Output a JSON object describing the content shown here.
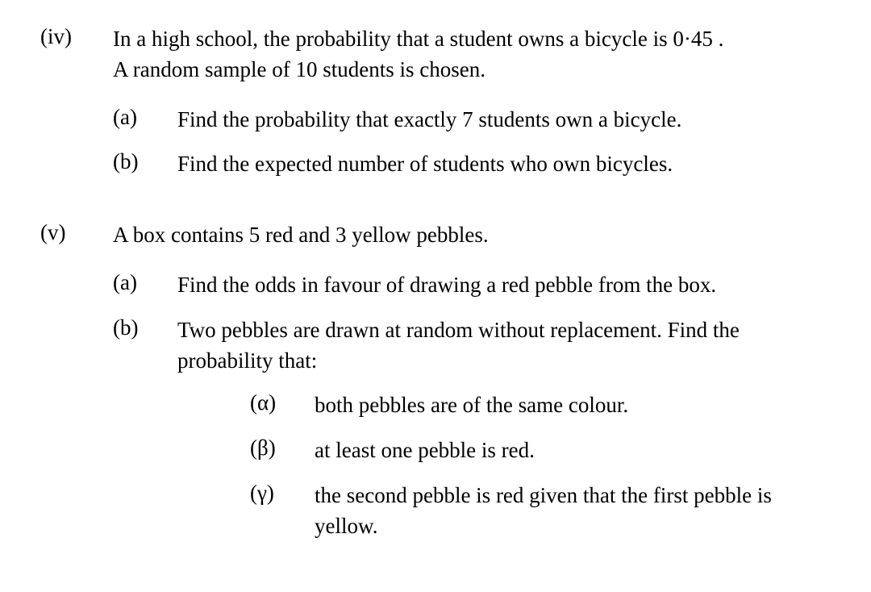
{
  "style": {
    "background_color": "#ffffff",
    "text_color": "#000000",
    "font_family": "Times New Roman, serif",
    "body_fontsize": 27,
    "line_height": 1.4
  },
  "q4": {
    "number": "(iv)",
    "intro_line1": "In a high school, the probability that a student owns a bicycle is  0·45 .",
    "intro_line2": "A random sample of  10  students is chosen.",
    "parts": {
      "a": {
        "marker": "(a)",
        "text": "Find the probability that exactly  7  students own a bicycle."
      },
      "b": {
        "marker": "(b)",
        "text": "Find the expected number of students who own bicycles."
      }
    }
  },
  "q5": {
    "number": "(v)",
    "intro": "A box contains  5  red and  3  yellow pebbles.",
    "parts": {
      "a": {
        "marker": "(a)",
        "text": "Find the odds in favour of drawing a red pebble from the box."
      },
      "b": {
        "marker": "(b)",
        "text": "Two pebbles are drawn at random without replacement.  Find the probability that:",
        "subparts": {
          "alpha": {
            "marker": "(α)",
            "text": "both pebbles are of the same colour."
          },
          "beta": {
            "marker": "(β)",
            "text": "at least one pebble is red."
          },
          "gamma": {
            "marker": "(γ)",
            "text": "the second pebble is red given that the first pebble is yellow."
          }
        }
      }
    }
  }
}
